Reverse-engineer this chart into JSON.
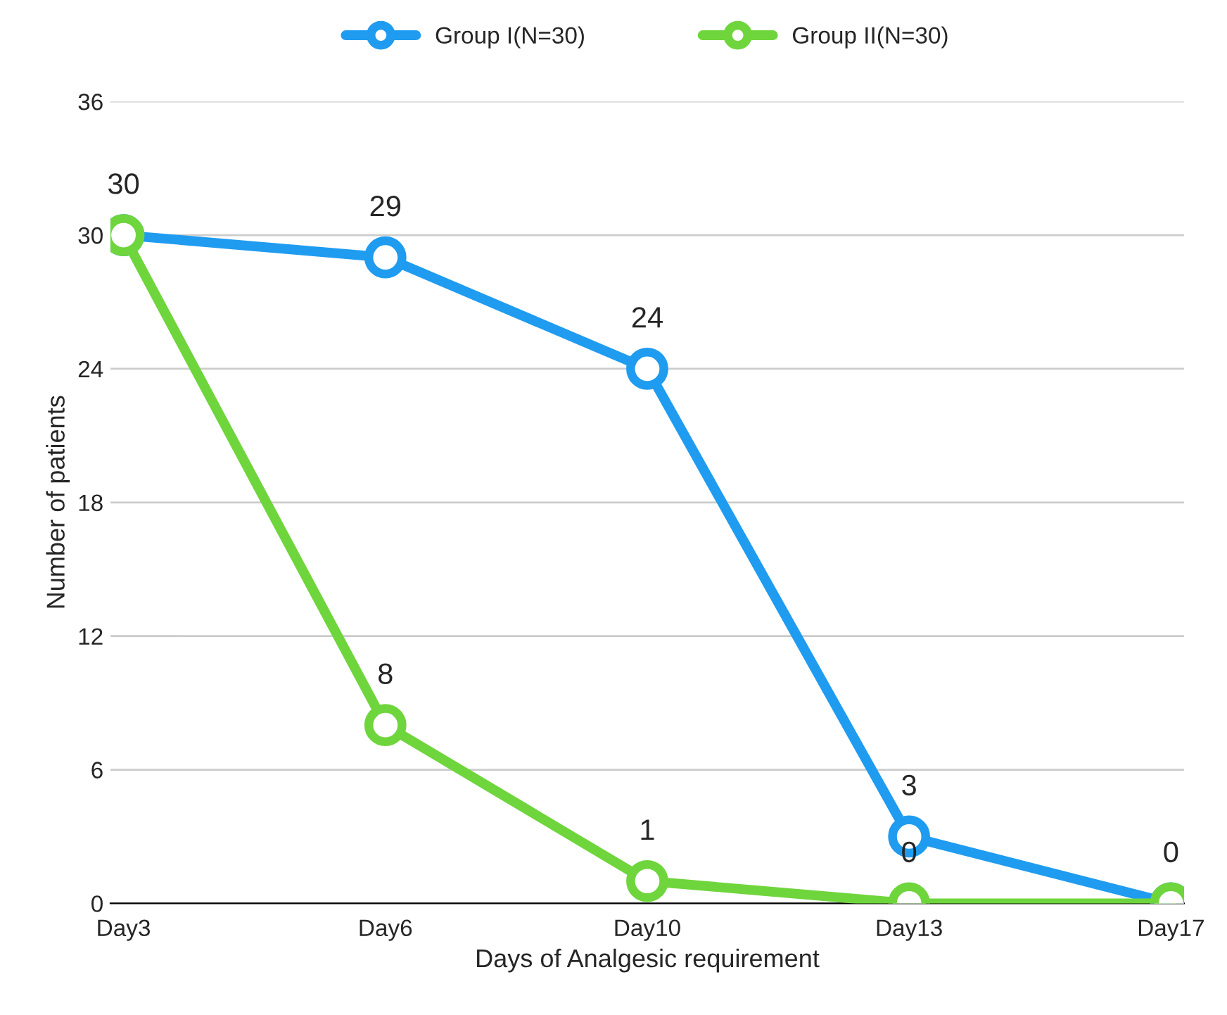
{
  "chart_data": {
    "type": "line",
    "xlabel": "Days of Analgesic requirement",
    "ylabel": "Number of patients",
    "categories": [
      "Day3",
      "Day6",
      "Day10",
      "Day13",
      "Day17"
    ],
    "series": [
      {
        "name": "Group I(N=30)",
        "color": "#1f9cf0",
        "values": [
          30,
          29,
          24,
          3,
          0
        ],
        "value_labels": [
          "30",
          "29",
          "24",
          "3",
          "0"
        ]
      },
      {
        "name": "Group II(N=30)",
        "color": "#6fd53c",
        "values": [
          30,
          8,
          1,
          0,
          0
        ],
        "value_labels": [
          null,
          "8",
          "1",
          "0",
          null
        ]
      }
    ],
    "ylim": [
      0,
      36
    ],
    "yticks": [
      0,
      6,
      12,
      18,
      24,
      30,
      36
    ],
    "grid": "y",
    "legend": "top",
    "marker": "circle",
    "line_style": "solid"
  }
}
